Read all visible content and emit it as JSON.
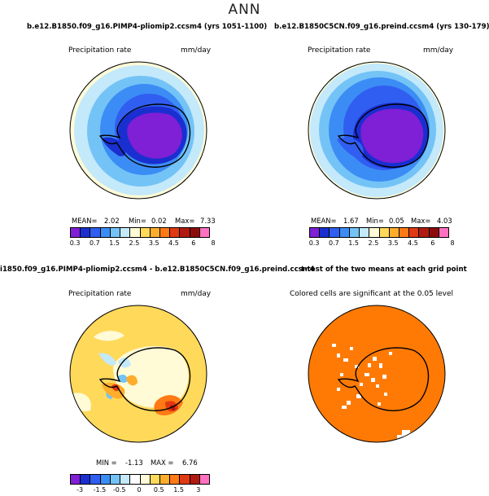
{
  "page": {
    "title": "ANN"
  },
  "panels": {
    "top_left": {
      "case": "b.e12.B1850.f09_g16.PIMP4-pliomip2.ccsm4 (yrs 1051-1100)",
      "variable": "Precipitation rate",
      "units": "mm/day",
      "stats": {
        "mean_label": "MEAN=",
        "mean": "2.02",
        "min_label": "Min=",
        "min": "0.02",
        "max_label": "Max=",
        "max": "7.33"
      }
    },
    "top_right": {
      "case": "b.e12.B1850C5CN.f09_g16.preind.ccsm4 (yrs 130-179)",
      "variable": "Precipitation rate",
      "units": "mm/day",
      "stats": {
        "mean_label": "MEAN=",
        "mean": "1.67",
        "min_label": "Min=",
        "min": "0.05",
        "max_label": "Max=",
        "max": "4.03"
      }
    },
    "bottom_left": {
      "case": "i1850.f09_g16.PIMP4-pliomip2.ccsm4 - b.e12.B1850C5CN.f09_g16.preind.ccsm4",
      "variable": "Precipitation rate",
      "units": "mm/day",
      "stats": {
        "min_label": "MIN =",
        "min": "-1.13",
        "max_label": "MAX =",
        "max": "6.76"
      }
    },
    "bottom_right": {
      "case": "t-test of the two means at each grid point",
      "note": "Colored cells are significant at the 0.05 level"
    }
  },
  "colorbars": {
    "absolute": {
      "colors": [
        "#7f1fd6",
        "#1a2fd0",
        "#2f5ef0",
        "#3c8cf5",
        "#74c3f7",
        "#c3e9fa",
        "#fffbd7",
        "#ffd95a",
        "#ffad2a",
        "#ff7a15",
        "#e03a12",
        "#b01a10",
        "#8c0c0c",
        "#ff70c0"
      ],
      "ticks": [
        "0.3",
        "0.7",
        "1.5",
        "2.5",
        "3.5",
        "4.5",
        "6",
        "8"
      ]
    },
    "difference": {
      "colors": [
        "#7f1fd6",
        "#1a2fd0",
        "#2f5ef0",
        "#3c8cf5",
        "#74c3f7",
        "#c3e9fa",
        "#ffffff",
        "#fffbd7",
        "#ffd95a",
        "#ffad2a",
        "#ff7a15",
        "#e03a12",
        "#b01a10",
        "#ff70c0"
      ],
      "ticks": [
        "-3",
        "-1.5",
        "-0.5",
        "0",
        "0.5",
        "1.5",
        "3"
      ]
    }
  },
  "colors": {
    "significant": "#ff7a05"
  }
}
